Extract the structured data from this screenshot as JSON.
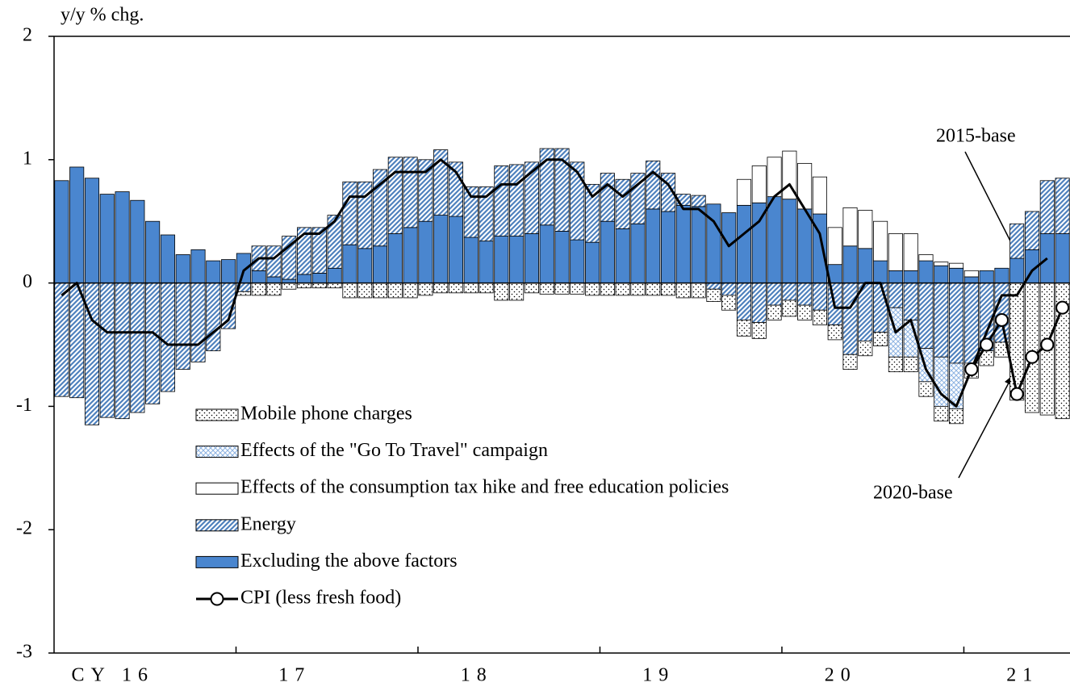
{
  "chart_data": {
    "type": "stacked_bar_line",
    "y_label": "y/y % chg.",
    "categories": [
      null,
      null,
      null,
      null,
      null,
      null,
      "CY 16",
      null,
      null,
      null,
      null,
      null,
      null,
      null,
      null,
      null,
      null,
      null,
      "17",
      null,
      null,
      null,
      null,
      null,
      null,
      null,
      null,
      null,
      null,
      null,
      "18",
      null,
      null,
      null,
      null,
      null,
      null,
      null,
      null,
      null,
      null,
      null,
      "19",
      null,
      null,
      null,
      null,
      null,
      null,
      null,
      null,
      null,
      null,
      null,
      "20",
      null,
      null,
      null,
      null,
      null,
      null,
      null,
      null,
      null,
      null,
      null,
      "21"
    ],
    "ylim": [
      -3,
      2
    ],
    "yticks": [
      -3,
      -2,
      -1,
      0,
      1,
      2
    ],
    "legend": "lower left",
    "series": [
      {
        "name": "Mobile phone charges",
        "color": "#000000",
        "pattern": "dots",
        "values": [
          null,
          null,
          null,
          null,
          null,
          null,
          null,
          null,
          null,
          null,
          null,
          null,
          -0.03,
          -0.1,
          -0.1,
          -0.05,
          -0.04,
          -0.04,
          -0.04,
          -0.12,
          -0.12,
          -0.12,
          -0.12,
          -0.12,
          -0.1,
          -0.08,
          -0.08,
          -0.08,
          -0.08,
          -0.14,
          -0.14,
          -0.08,
          -0.09,
          -0.09,
          -0.09,
          -0.1,
          -0.1,
          -0.1,
          -0.1,
          -0.1,
          -0.1,
          -0.12,
          -0.12,
          -0.1,
          -0.12,
          -0.13,
          -0.13,
          -0.12,
          -0.13,
          -0.12,
          -0.12,
          -0.12,
          -0.12,
          -0.12,
          -0.11,
          -0.12,
          -0.12,
          -0.12,
          -0.12,
          -0.12,
          -0.12,
          -0.12,
          -0.12,
          -0.95,
          -1.05,
          -1.07,
          -1.1
        ]
      },
      {
        "name": "Effects of the \"Go To Travel\" campaign",
        "color": "#8db3e2",
        "pattern": "crosshatch",
        "values": [
          null,
          null,
          null,
          null,
          null,
          null,
          null,
          null,
          null,
          null,
          null,
          null,
          null,
          null,
          null,
          null,
          null,
          null,
          null,
          null,
          null,
          null,
          null,
          null,
          null,
          null,
          null,
          null,
          null,
          null,
          null,
          null,
          null,
          null,
          null,
          null,
          null,
          null,
          null,
          null,
          null,
          null,
          null,
          null,
          null,
          null,
          null,
          null,
          null,
          null,
          null,
          null,
          null,
          null,
          null,
          -0.4,
          -0.3,
          -0.27,
          -0.4,
          -0.37,
          null,
          null,
          null,
          null,
          null,
          null,
          null
        ]
      },
      {
        "name": "Effects of the consumption tax hike and free education policies",
        "color": "#ffffff",
        "pattern": "solid",
        "values": [
          null,
          null,
          null,
          null,
          null,
          null,
          null,
          null,
          null,
          null,
          null,
          null,
          null,
          null,
          null,
          null,
          null,
          null,
          null,
          null,
          null,
          null,
          null,
          null,
          null,
          null,
          null,
          null,
          null,
          null,
          null,
          null,
          null,
          null,
          null,
          null,
          null,
          null,
          null,
          null,
          null,
          null,
          null,
          null,
          null,
          0.21,
          0.3,
          0.32,
          0.39,
          0.37,
          0.3,
          0.3,
          0.31,
          0.31,
          0.32,
          0.3,
          0.3,
          0.05,
          0.03,
          0.04,
          0.05,
          null,
          null,
          null,
          null,
          null,
          null
        ]
      },
      {
        "name": "Energy",
        "color": "#4f81bd",
        "pattern": "hatch",
        "values": [
          -0.92,
          -0.93,
          -1.15,
          -1.09,
          -1.1,
          -1.05,
          -0.98,
          -0.88,
          -0.7,
          -0.64,
          -0.55,
          -0.37,
          -0.07,
          0.2,
          0.25,
          0.35,
          0.38,
          0.37,
          0.43,
          0.51,
          0.54,
          0.62,
          0.62,
          0.57,
          0.5,
          0.53,
          0.44,
          0.41,
          0.44,
          0.57,
          0.58,
          0.58,
          0.62,
          0.67,
          0.63,
          0.47,
          0.39,
          0.4,
          0.41,
          0.39,
          0.31,
          0.09,
          0.09,
          -0.05,
          -0.1,
          -0.3,
          -0.32,
          -0.18,
          -0.14,
          -0.18,
          -0.22,
          -0.34,
          -0.58,
          -0.47,
          -0.4,
          -0.2,
          -0.3,
          -0.53,
          -0.6,
          -0.65,
          -0.65,
          -0.55,
          -0.48,
          0.28,
          0.31,
          0.43,
          0.45
        ]
      },
      {
        "name": "Excluding the above factors",
        "color": "#4a86cf",
        "pattern": "solid",
        "values": [
          0.83,
          0.94,
          0.85,
          0.72,
          0.74,
          0.67,
          0.5,
          0.39,
          0.23,
          0.27,
          0.18,
          0.19,
          0.24,
          0.1,
          0.05,
          0.03,
          0.07,
          0.08,
          0.12,
          0.31,
          0.28,
          0.3,
          0.4,
          0.45,
          0.5,
          0.55,
          0.54,
          0.37,
          0.34,
          0.38,
          0.38,
          0.4,
          0.47,
          0.42,
          0.35,
          0.33,
          0.5,
          0.44,
          0.48,
          0.6,
          0.58,
          0.63,
          0.62,
          0.64,
          0.57,
          0.63,
          0.65,
          0.7,
          0.68,
          0.6,
          0.56,
          0.15,
          0.3,
          0.28,
          0.18,
          0.1,
          0.1,
          0.18,
          0.14,
          0.12,
          0.05,
          0.1,
          0.12,
          0.2,
          0.27,
          0.4,
          0.4
        ]
      }
    ],
    "line_legend": "CPI (less fresh food)",
    "line_color": "#000000",
    "lines": [
      {
        "marker": false,
        "values": [
          -0.1,
          0.0,
          -0.3,
          -0.4,
          -0.4,
          -0.4,
          -0.4,
          -0.5,
          -0.5,
          -0.5,
          -0.4,
          -0.3,
          0.1,
          0.2,
          0.2,
          0.3,
          0.4,
          0.4,
          0.5,
          0.7,
          0.7,
          0.8,
          0.9,
          0.9,
          0.9,
          1.0,
          0.9,
          0.7,
          0.7,
          0.8,
          0.8,
          0.9,
          1.0,
          1.0,
          0.9,
          0.7,
          0.8,
          0.7,
          0.8,
          0.9,
          0.8,
          0.6,
          0.6,
          0.5,
          0.3,
          0.4,
          0.5,
          0.7,
          0.8,
          0.6,
          0.4,
          -0.2,
          -0.2,
          0.0,
          0.0,
          -0.4,
          -0.3,
          -0.7,
          -0.9,
          -1.0,
          -0.7,
          -0.4,
          -0.1,
          -0.1,
          0.1,
          0.2,
          null
        ]
      },
      {
        "marker": true,
        "values": [
          null,
          null,
          null,
          null,
          null,
          null,
          null,
          null,
          null,
          null,
          null,
          null,
          null,
          null,
          null,
          null,
          null,
          null,
          null,
          null,
          null,
          null,
          null,
          null,
          null,
          null,
          null,
          null,
          null,
          null,
          null,
          null,
          null,
          null,
          null,
          null,
          null,
          null,
          null,
          null,
          null,
          null,
          null,
          null,
          null,
          null,
          null,
          null,
          null,
          null,
          null,
          null,
          null,
          null,
          null,
          null,
          null,
          null,
          null,
          null,
          -0.7,
          -0.5,
          -0.3,
          -0.9,
          -0.6,
          -0.5,
          -0.2
        ]
      }
    ],
    "annotations": [
      {
        "text": "2015-base"
      },
      {
        "text": "2020-base"
      }
    ]
  }
}
